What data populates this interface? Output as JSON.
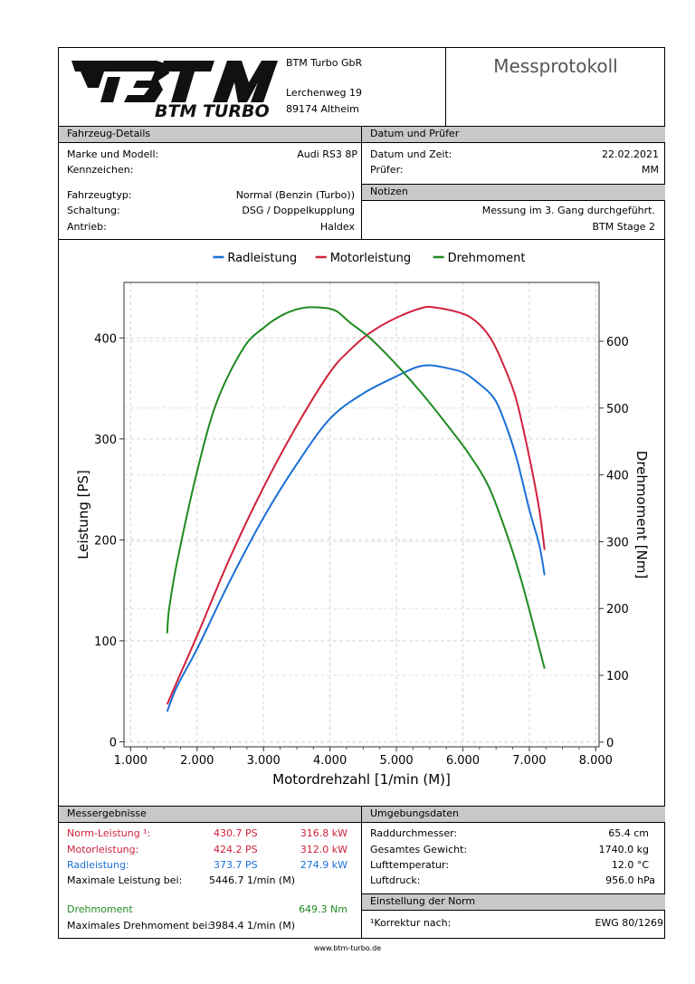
{
  "company": {
    "logo_text": "BTM TURBO",
    "name": "BTM Turbo GbR",
    "street": "Lerchenweg 19",
    "city": "89174 Altheim"
  },
  "doc_title": "Messprotokoll",
  "vehicle": {
    "section_title": "Fahrzeug-Details",
    "make_label": "Marke und Modell:",
    "make_value": "Audi RS3 8P",
    "plate_label": "Kennzeichen:",
    "plate_value": "",
    "type_label": "Fahrzeugtyp:",
    "type_value": "Normal (Benzin (Turbo))",
    "gearbox_label": "Schaltung:",
    "gearbox_value": "DSG / Doppelkupplung",
    "drive_label": "Antrieb:",
    "drive_value": "Haldex"
  },
  "date_tester": {
    "section_title": "Datum und Prüfer",
    "date_label": "Datum und Zeit:",
    "date_value": "22.02.2021",
    "tester_label": "Prüfer:",
    "tester_value": "MM"
  },
  "notes": {
    "section_title": "Notizen",
    "line1": "Messung im 3. Gang durchgeführt.",
    "line2": "BTM Stage 2"
  },
  "results": {
    "section_title": "Messergebnisse",
    "norm_label": "Norm-Leistung ¹:",
    "norm_ps": "430.7 PS",
    "norm_kw": "316.8 kW",
    "motor_label": "Motorleistung:",
    "motor_ps": "424.2 PS",
    "motor_kw": "312.0 kW",
    "wheel_label": "Radleistung:",
    "wheel_ps": "373.7 PS",
    "wheel_kw": "274.9 kW",
    "maxpower_label": "Maximale Leistung bei:",
    "maxpower_value": "5446.7 1/min (M)",
    "torque_label": "Drehmoment",
    "torque_value": "649.3 Nm",
    "maxtorque_label": "Maximales Drehmoment bei:",
    "maxtorque_value": "3984.4 1/min (M)"
  },
  "ambient": {
    "section_title": "Umgebungsdaten",
    "wheel_diam_label": "Raddurchmesser:",
    "wheel_diam_value": "65.4 cm",
    "weight_label": "Gesamtes Gewicht:",
    "weight_value": "1740.0 kg",
    "air_temp_label": "Lufttemperatur:",
    "air_temp_value": "12.0 °C",
    "air_press_label": "Luftdruck:",
    "air_press_value": "956.0 hPa"
  },
  "norm": {
    "section_title": "Einstellung der Norm",
    "correction_label": "¹Korrektur nach:",
    "correction_value": "EWG 80/1269"
  },
  "footer": {
    "url": "www.btm-turbo.de"
  },
  "colors": {
    "wheel": "#1a6fd6",
    "motor": "#d0223c",
    "torque": "#1f8a1f",
    "section_bg": "#c8c8c8"
  },
  "chart_data": {
    "type": "line",
    "xlabel": "Motordrehzahl [1/min (M)]",
    "ylabel": "Leistung [PS]",
    "y2label": "Drehmoment [Nm]",
    "xlim": [
      900,
      8050
    ],
    "ylim": [
      -5,
      455
    ],
    "y2lim": [
      -7,
      688
    ],
    "xticks": [
      1000,
      2000,
      3000,
      4000,
      5000,
      6000,
      7000,
      8000
    ],
    "xtick_labels": [
      "1.000",
      "2.000",
      "3.000",
      "4.000",
      "5.000",
      "6.000",
      "7.000",
      "8.000"
    ],
    "yticks": [
      0,
      100,
      200,
      300,
      400
    ],
    "y2ticks": [
      0,
      100,
      200,
      300,
      400,
      500,
      600
    ],
    "grid": true,
    "legend_position": "top",
    "series": [
      {
        "name": "Radleistung",
        "axis": "left",
        "color": "#1a6fd6",
        "x": [
          1550,
          1700,
          2000,
          2500,
          3000,
          3500,
          4000,
          4500,
          5000,
          5300,
          5500,
          5700,
          6000,
          6200,
          6450,
          6600,
          6800,
          7000,
          7150,
          7230
        ],
        "y": [
          30,
          55,
          92,
          160,
          222,
          275,
          320,
          345,
          362,
          371,
          373,
          371,
          366,
          357,
          342,
          322,
          283,
          230,
          195,
          165
        ]
      },
      {
        "name": "Motorleistung",
        "axis": "left",
        "color": "#d0223c",
        "x": [
          1550,
          1700,
          2000,
          2500,
          3000,
          3500,
          4000,
          4300,
          4600,
          5000,
          5400,
          5600,
          5900,
          6100,
          6300,
          6450,
          6600,
          6800,
          7000,
          7150,
          7230
        ],
        "y": [
          37,
          60,
          105,
          183,
          252,
          313,
          366,
          388,
          405,
          420,
          430,
          430,
          426,
          421,
          410,
          396,
          375,
          340,
          282,
          230,
          190
        ]
      },
      {
        "name": "Drehmoment",
        "axis": "right",
        "color": "#1f8a1f",
        "x": [
          1550,
          1580,
          1700,
          2000,
          2300,
          2700,
          3000,
          3300,
          3600,
          3900,
          4100,
          4300,
          4600,
          5000,
          5400,
          5800,
          6100,
          6400,
          6700,
          6900,
          7100,
          7230
        ],
        "y": [
          163,
          200,
          270,
          405,
          510,
          590,
          620,
          640,
          650,
          650,
          645,
          628,
          605,
          565,
          520,
          470,
          430,
          380,
          300,
          235,
          160,
          110
        ]
      }
    ]
  }
}
